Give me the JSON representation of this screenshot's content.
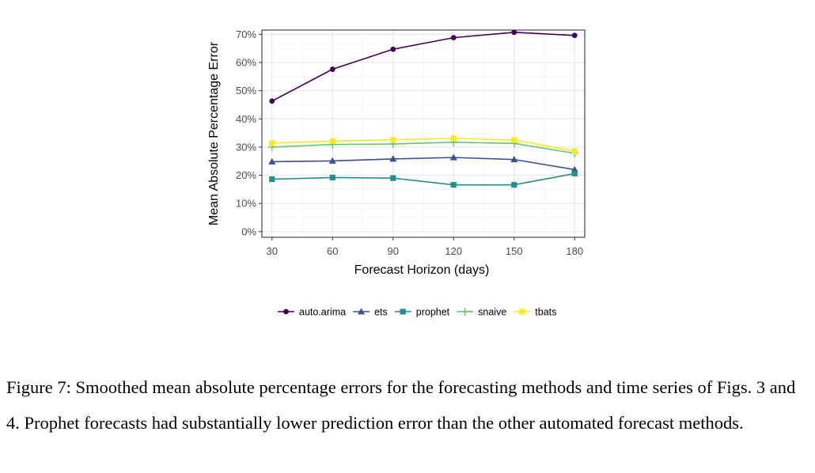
{
  "figure": {
    "caption": "Figure 7: Smoothed mean absolute percentage errors for the forecasting methods and time series of Figs. 3 and 4. Prophet forecasts had substantially lower prediction error than the other automated forecast methods."
  },
  "chart_data": {
    "type": "line",
    "title": "",
    "xlabel": "Forecast Horizon (days)",
    "ylabel": "Mean Absolute Percentage Error",
    "x": [
      30,
      60,
      90,
      120,
      150,
      180
    ],
    "xticks": [
      "30",
      "60",
      "90",
      "120",
      "150",
      "180"
    ],
    "yticks": [
      0,
      10,
      20,
      30,
      40,
      50,
      60,
      70
    ],
    "ytick_labels": [
      "0%",
      "10%",
      "20%",
      "30%",
      "40%",
      "50%",
      "60%",
      "70%"
    ],
    "xlim": [
      25,
      185
    ],
    "ylim": [
      -2,
      71.5
    ],
    "grid": true,
    "legend_position": "bottom",
    "series": [
      {
        "name": "auto.arima",
        "color": "#440154",
        "marker": "circle",
        "values": [
          46.3,
          57.6,
          64.7,
          68.8,
          70.7,
          69.6
        ]
      },
      {
        "name": "ets",
        "color": "#3b528b",
        "marker": "triangle",
        "values": [
          24.8,
          25.1,
          25.8,
          26.3,
          25.6,
          22.0
        ]
      },
      {
        "name": "prophet",
        "color": "#21908c",
        "marker": "square",
        "values": [
          18.6,
          19.2,
          19.0,
          16.6,
          16.6,
          20.6
        ]
      },
      {
        "name": "snaive",
        "color": "#5ec962",
        "marker": "plus",
        "values": [
          30.0,
          30.9,
          31.1,
          31.7,
          31.3,
          27.8
        ]
      },
      {
        "name": "tbats",
        "color": "#fde725",
        "marker": "square",
        "values": [
          31.4,
          32.1,
          32.6,
          33.1,
          32.5,
          28.6
        ]
      }
    ]
  }
}
